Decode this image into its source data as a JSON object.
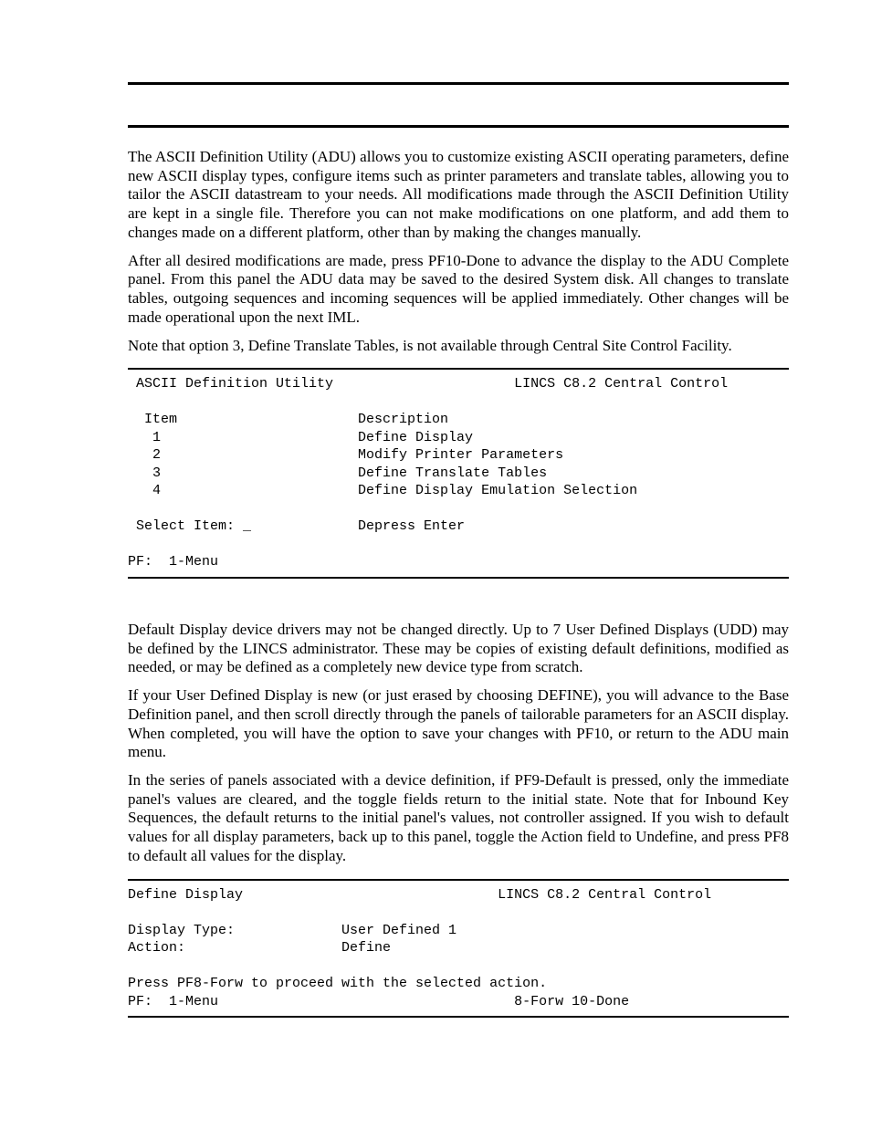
{
  "paragraphs": {
    "p1": "The ASCII Definition Utility (ADU) allows you to customize existing ASCII operating parameters, define new ASCII display types, configure items such as printer parameters and translate tables, allowing you to tailor the ASCII datastream to your needs. All modifications made through the ASCII Definition Utility are kept in a single file. Therefore you can not make modifications on one platform, and add them to changes made on a different platform, other than by making the changes manually.",
    "p2": "After all desired modifications are made, press PF10-Done to advance the display to the ADU Complete panel. From this panel the ADU data may be saved to the desired System disk. All changes to translate tables, outgoing sequences and incoming sequences will be applied immediately. Other changes will be made operational upon the next IML.",
    "p3": "Note that option 3, Define Translate Tables, is not available through Central Site Control Facility.",
    "p4": "Default Display device drivers may not be changed directly. Up to 7 User Defined Displays (UDD) may be defined by the LINCS administrator. These may be copies of existing default definitions, modified as needed, or may be defined as a completely new device type from scratch.",
    "p5": "If your User Defined Display is new (or just erased by choosing DEFINE), you will advance to the Base Definition panel, and then scroll directly through the panels of tailorable parameters for an ASCII display. When completed, you will have the option to save your changes with PF10, or return to the ADU main menu.",
    "p6": "In the series of panels associated with a device definition, if PF9-Default is pressed, only the immediate panel's values are cleared, and the toggle fields return to the initial state. Note that for Inbound Key Sequences, the default returns to the initial panel's values, not controller assigned. If you wish to default values for all display parameters, back up to this panel, toggle the Action field to Undefine, and press PF8 to default all values for the display."
  },
  "terminal1": {
    "title_left": "ASCII Definition Utility",
    "title_right": "LINCS C8.2 Central Control",
    "header_item": "Item",
    "header_desc": "Description",
    "rows": [
      {
        "item": "1",
        "desc": "Define Display"
      },
      {
        "item": "2",
        "desc": "Modify Printer Parameters"
      },
      {
        "item": "3",
        "desc": "Define Translate Tables"
      },
      {
        "item": "4",
        "desc": "Define Display Emulation Selection"
      }
    ],
    "select_label": "Select Item: _",
    "select_right": "Depress Enter",
    "pf": "PF:  1-Menu"
  },
  "terminal2": {
    "title_left": "Define Display",
    "title_right": "LINCS C8.2 Central Control",
    "display_type_label": "Display Type:",
    "display_type_value": "User Defined 1",
    "action_label": "Action:",
    "action_value": "Define",
    "instruction": "Press PF8-Forw to proceed with the selected action.",
    "pf_left": "PF:  1-Menu",
    "pf_right": "8-Forw 10-Done"
  }
}
